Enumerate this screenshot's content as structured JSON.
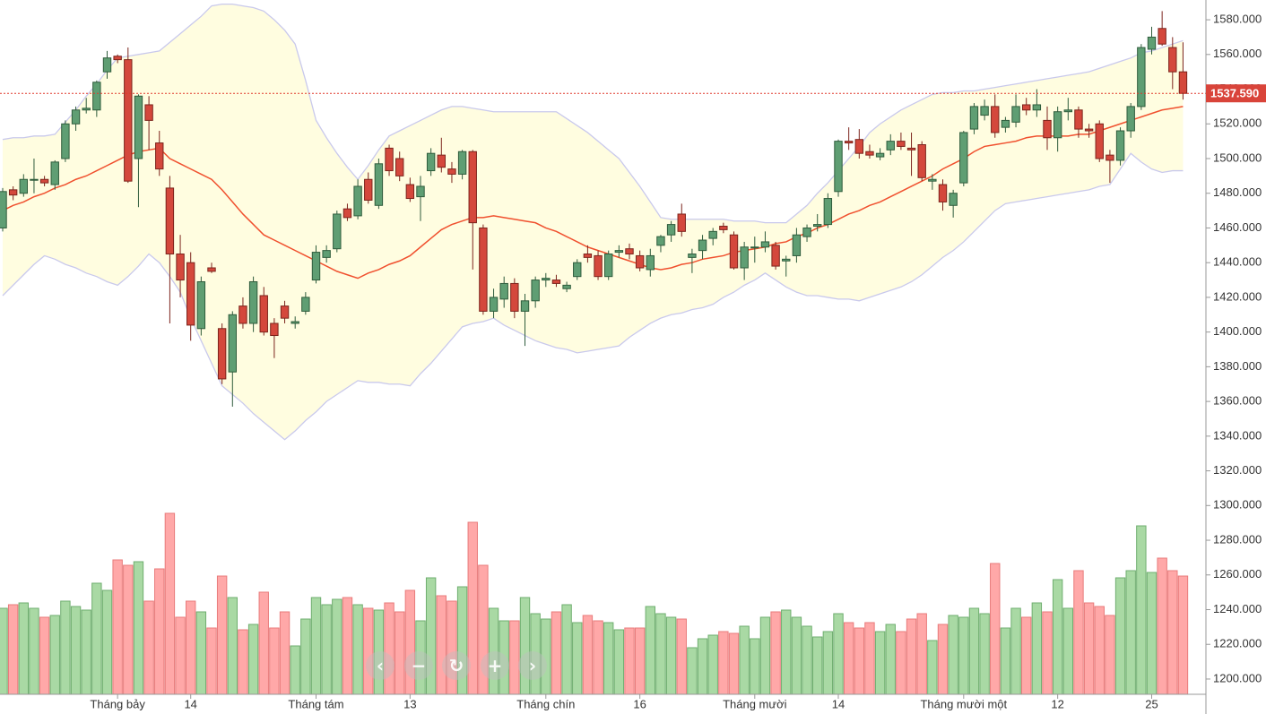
{
  "chart_data": {
    "type": "candlestick",
    "categories": [
      null,
      null,
      null,
      null,
      null,
      null,
      null,
      null,
      null,
      null,
      null,
      "Tháng bảy",
      null,
      null,
      null,
      null,
      null,
      null,
      "14",
      null,
      null,
      null,
      null,
      null,
      null,
      null,
      null,
      null,
      null,
      null,
      "Tháng tám",
      null,
      null,
      null,
      null,
      null,
      null,
      null,
      null,
      "13",
      null,
      null,
      null,
      null,
      null,
      null,
      null,
      null,
      null,
      null,
      null,
      null,
      "Tháng chín",
      null,
      null,
      null,
      null,
      null,
      null,
      null,
      null,
      "16",
      null,
      null,
      null,
      null,
      null,
      null,
      null,
      null,
      null,
      null,
      "Tháng mười",
      null,
      null,
      null,
      null,
      null,
      null,
      null,
      "14",
      null,
      null,
      null,
      null,
      null,
      null,
      null,
      null,
      null,
      null,
      null,
      "Tháng mười một",
      null,
      null,
      null,
      null,
      null,
      null,
      null,
      null,
      "12",
      null,
      null,
      null,
      null,
      null,
      null,
      null,
      null,
      "25",
      null,
      null,
      null
    ],
    "open": [
      1460,
      1482,
      1480,
      1488,
      1488,
      1485,
      1500,
      1520,
      1528,
      1528,
      1550,
      1559,
      1557,
      1500,
      1531,
      1509,
      1483,
      1445,
      1440,
      1402,
      1437,
      1402,
      1377,
      1415,
      1405,
      1421,
      1405,
      1415,
      1405,
      1412,
      1430,
      1443,
      1448,
      1471,
      1467,
      1488,
      1473,
      1506,
      1500,
      1485,
      1478,
      1493,
      1502,
      1494,
      1491,
      1504,
      1460,
      1412,
      1419,
      1428,
      1412,
      1418,
      1430,
      1430,
      1425,
      1432,
      1445,
      1444,
      1432,
      1446,
      1448,
      1444,
      1436,
      1450,
      1456,
      1468,
      1443,
      1447,
      1454,
      1461,
      1456,
      1437,
      1449,
      1449,
      1450,
      1441,
      1444,
      1455,
      1461,
      1462,
      1481,
      1510,
      1511,
      1504,
      1501,
      1505,
      1510,
      1506,
      1508,
      1487,
      1485,
      1473,
      1486,
      1517,
      1525,
      1530,
      1518,
      1521,
      1531,
      1528,
      1522,
      1512,
      1527,
      1528,
      1517,
      1520,
      1502,
      1499,
      1516,
      1530,
      1563,
      1575,
      1564,
      1550
    ],
    "high": [
      1483,
      1484,
      1491,
      1500,
      1490,
      1499,
      1522,
      1530,
      1535,
      1545,
      1562,
      1560,
      1564,
      1537,
      1536,
      1516,
      1490,
      1456,
      1446,
      1432,
      1440,
      1405,
      1412,
      1420,
      1432,
      1426,
      1408,
      1418,
      1409,
      1423,
      1450,
      1450,
      1470,
      1474,
      1488,
      1492,
      1500,
      1508,
      1504,
      1489,
      1490,
      1506,
      1512,
      1498,
      1505,
      1505,
      1462,
      1425,
      1432,
      1431,
      1422,
      1432,
      1434,
      1433,
      1429,
      1442,
      1450,
      1447,
      1447,
      1450,
      1451,
      1447,
      1448,
      1456,
      1464,
      1474,
      1448,
      1456,
      1460,
      1463,
      1458,
      1452,
      1455,
      1458,
      1452,
      1444,
      1460,
      1462,
      1468,
      1480,
      1511,
      1518,
      1517,
      1508,
      1506,
      1514,
      1515,
      1515,
      1510,
      1491,
      1488,
      1482,
      1516,
      1532,
      1534,
      1537,
      1524,
      1537,
      1535,
      1540,
      1530,
      1530,
      1535,
      1530,
      1520,
      1522,
      1505,
      1518,
      1532,
      1566,
      1576,
      1585,
      1570,
      1567
    ],
    "low": [
      1458,
      1476,
      1478,
      1480,
      1484,
      1482,
      1498,
      1516,
      1526,
      1524,
      1546,
      1555,
      1486,
      1472,
      1505,
      1490,
      1405,
      1420,
      1395,
      1398,
      1434,
      1370,
      1357,
      1402,
      1400,
      1398,
      1385,
      1405,
      1402,
      1410,
      1428,
      1440,
      1446,
      1464,
      1465,
      1474,
      1471,
      1490,
      1487,
      1475,
      1464,
      1490,
      1492,
      1486,
      1488,
      1436,
      1410,
      1408,
      1414,
      1408,
      1392,
      1414,
      1426,
      1426,
      1423,
      1430,
      1440,
      1430,
      1430,
      1443,
      1442,
      1435,
      1432,
      1446,
      1452,
      1455,
      1434,
      1442,
      1450,
      1457,
      1436,
      1430,
      1440,
      1446,
      1436,
      1432,
      1440,
      1452,
      1458,
      1460,
      1478,
      1505,
      1500,
      1500,
      1499,
      1502,
      1505,
      1490,
      1487,
      1482,
      1470,
      1466,
      1484,
      1514,
      1522,
      1512,
      1515,
      1518,
      1525,
      1524,
      1505,
      1504,
      1522,
      1512,
      1512,
      1498,
      1486,
      1496,
      1512,
      1528,
      1560,
      1565,
      1540,
      1534
    ],
    "close": [
      1481,
      1479,
      1488,
      1488,
      1486,
      1498,
      1520,
      1528,
      1529,
      1544,
      1558,
      1557,
      1487,
      1536,
      1522,
      1494,
      1445,
      1430,
      1404,
      1429,
      1435,
      1373,
      1410,
      1405,
      1429,
      1400,
      1398,
      1408,
      1406,
      1420,
      1446,
      1447,
      1468,
      1466,
      1484,
      1476,
      1497,
      1493,
      1490,
      1477,
      1484,
      1503,
      1495,
      1491,
      1504,
      1463,
      1412,
      1420,
      1428,
      1412,
      1418,
      1430,
      1431,
      1428,
      1427,
      1440,
      1443,
      1432,
      1445,
      1447,
      1445,
      1437,
      1444,
      1455,
      1462,
      1458,
      1445,
      1453,
      1458,
      1459,
      1437,
      1449,
      1449,
      1452,
      1438,
      1442,
      1456,
      1460,
      1462,
      1477,
      1510,
      1509,
      1503,
      1502,
      1503,
      1510,
      1507,
      1505,
      1489,
      1488,
      1475,
      1480,
      1515,
      1530,
      1530,
      1515,
      1522,
      1530,
      1528,
      1531,
      1512,
      1527,
      1528,
      1517,
      1516,
      1500,
      1499,
      1516,
      1530,
      1564,
      1570,
      1566,
      1550,
      1537.59
    ],
    "volume": [
      48,
      50,
      51,
      48,
      43,
      44,
      52,
      49,
      47,
      62,
      58,
      75,
      72,
      74,
      52,
      70,
      101,
      43,
      52,
      46,
      37,
      66,
      54,
      36,
      39,
      57,
      37,
      46,
      27,
      42,
      54,
      50,
      53,
      54,
      50,
      48,
      47,
      51,
      46,
      58,
      41,
      65,
      55,
      52,
      60,
      96,
      72,
      48,
      41,
      41,
      54,
      45,
      42,
      46,
      50,
      40,
      44,
      41,
      40,
      36,
      37,
      37,
      49,
      45,
      43,
      42,
      26,
      31,
      33,
      35,
      34,
      38,
      31,
      43,
      46,
      47,
      43,
      38,
      32,
      35,
      45,
      40,
      37,
      40,
      35,
      39,
      35,
      42,
      45,
      30,
      39,
      44,
      43,
      48,
      45,
      73,
      37,
      48,
      43,
      51,
      46,
      64,
      48,
      69,
      51,
      49,
      44,
      65,
      69,
      94,
      68,
      76,
      69,
      66
    ],
    "bands": {
      "upper": [
        1511,
        1512,
        1512,
        1513,
        1513,
        1514,
        1521,
        1528,
        1536,
        1543,
        1551,
        1558,
        1559,
        1560,
        1561,
        1562,
        1567,
        1572,
        1577,
        1582,
        1588,
        1589,
        1589,
        1588,
        1587,
        1585,
        1580,
        1574,
        1566,
        1545,
        1522,
        1512,
        1503,
        1495,
        1488,
        1496,
        1505,
        1513,
        1516,
        1519,
        1522,
        1525,
        1528,
        1530,
        1530,
        1529,
        1528,
        1527,
        1527,
        1527,
        1527,
        1527,
        1527,
        1527,
        1523,
        1519,
        1515,
        1510,
        1505,
        1500,
        1492,
        1484,
        1475,
        1466,
        1465,
        1465,
        1465,
        1465,
        1465,
        1465,
        1464,
        1464,
        1464,
        1463,
        1463,
        1463,
        1468,
        1473,
        1480,
        1486,
        1493,
        1500,
        1507,
        1515,
        1520,
        1524,
        1528,
        1531,
        1534,
        1537,
        1538,
        1538,
        1539,
        1539,
        1540,
        1541,
        1542,
        1543,
        1544,
        1545,
        1546,
        1547,
        1548,
        1549,
        1550,
        1552,
        1554,
        1556,
        1558,
        1561,
        1562,
        1564,
        1566,
        1568
      ],
      "middle": [
        1470,
        1473,
        1475,
        1478,
        1480,
        1483,
        1485,
        1488,
        1490,
        1493,
        1496,
        1499,
        1502,
        1504,
        1505,
        1506,
        1500,
        1497,
        1494,
        1491,
        1488,
        1482,
        1475,
        1468,
        1462,
        1456,
        1453,
        1450,
        1447,
        1444,
        1441,
        1438,
        1435,
        1433,
        1431,
        1434,
        1436,
        1439,
        1441,
        1444,
        1449,
        1454,
        1459,
        1462,
        1464,
        1466,
        1466,
        1467,
        1466,
        1465,
        1464,
        1463,
        1460,
        1458,
        1455,
        1452,
        1449,
        1447,
        1445,
        1443,
        1441,
        1439,
        1437,
        1436,
        1437,
        1439,
        1440,
        1442,
        1443,
        1444,
        1446,
        1447,
        1448,
        1449,
        1451,
        1452,
        1455,
        1457,
        1460,
        1462,
        1465,
        1468,
        1470,
        1473,
        1475,
        1478,
        1481,
        1484,
        1487,
        1490,
        1494,
        1497,
        1500,
        1504,
        1507,
        1508,
        1509,
        1510,
        1512,
        1513,
        1513,
        1513,
        1513,
        1514,
        1514,
        1516,
        1518,
        1520,
        1522,
        1524,
        1526,
        1528,
        1529,
        1530
      ],
      "lower": [
        1421,
        1427,
        1433,
        1439,
        1444,
        1442,
        1439,
        1437,
        1434,
        1432,
        1429,
        1427,
        1432,
        1438,
        1445,
        1440,
        1432,
        1423,
        1408,
        1395,
        1382,
        1369,
        1364,
        1359,
        1353,
        1348,
        1343,
        1338,
        1343,
        1349,
        1354,
        1360,
        1364,
        1368,
        1372,
        1371,
        1371,
        1370,
        1370,
        1369,
        1376,
        1382,
        1389,
        1396,
        1403,
        1405,
        1406,
        1408,
        1404,
        1401,
        1398,
        1395,
        1393,
        1391,
        1390,
        1388,
        1389,
        1390,
        1391,
        1392,
        1397,
        1401,
        1405,
        1408,
        1410,
        1411,
        1413,
        1414,
        1416,
        1420,
        1423,
        1427,
        1430,
        1434,
        1430,
        1426,
        1423,
        1421,
        1421,
        1420,
        1419,
        1419,
        1418,
        1420,
        1422,
        1424,
        1426,
        1429,
        1433,
        1438,
        1443,
        1447,
        1452,
        1458,
        1464,
        1470,
        1474,
        1475,
        1476,
        1477,
        1478,
        1479,
        1480,
        1481,
        1482,
        1484,
        1485,
        1494,
        1503,
        1498,
        1494,
        1492,
        1493,
        1493
      ]
    },
    "last_price": {
      "value": 1537.59,
      "label": "1537.590"
    },
    "ylim": [
      1191.2,
      1591.4
    ],
    "yticks": [
      {
        "value": 1200,
        "label": "1200.000"
      },
      {
        "value": 1220,
        "label": "1220.000"
      },
      {
        "value": 1240,
        "label": "1240.000"
      },
      {
        "value": 1260,
        "label": "1260.000"
      },
      {
        "value": 1280,
        "label": "1280.000"
      },
      {
        "value": 1300,
        "label": "1300.000"
      },
      {
        "value": 1320,
        "label": "1320.000"
      },
      {
        "value": 1340,
        "label": "1340.000"
      },
      {
        "value": 1360,
        "label": "1360.000"
      },
      {
        "value": 1380,
        "label": "1380.000"
      },
      {
        "value": 1400,
        "label": "1400.000"
      },
      {
        "value": 1420,
        "label": "1420.000"
      },
      {
        "value": 1440,
        "label": "1440.000"
      },
      {
        "value": 1460,
        "label": "1460.000"
      },
      {
        "value": 1480,
        "label": "1480.000"
      },
      {
        "value": 1500,
        "label": "1500.000"
      },
      {
        "value": 1520,
        "label": "1520.000"
      },
      {
        "value": 1540,
        "label": "1540.000"
      },
      {
        "value": 1560,
        "label": "1560.000"
      },
      {
        "value": 1580,
        "label": "1580.000"
      }
    ],
    "up_color": "#5f9e73",
    "down_color": "#d4483c",
    "volume_up_color": "#a9d9a4",
    "volume_down_color": "#ffa8a8",
    "band_fill_color": "#fffde0",
    "band_line_color": "#c9c9ec",
    "middle_line_color": "#f0502e"
  }
}
